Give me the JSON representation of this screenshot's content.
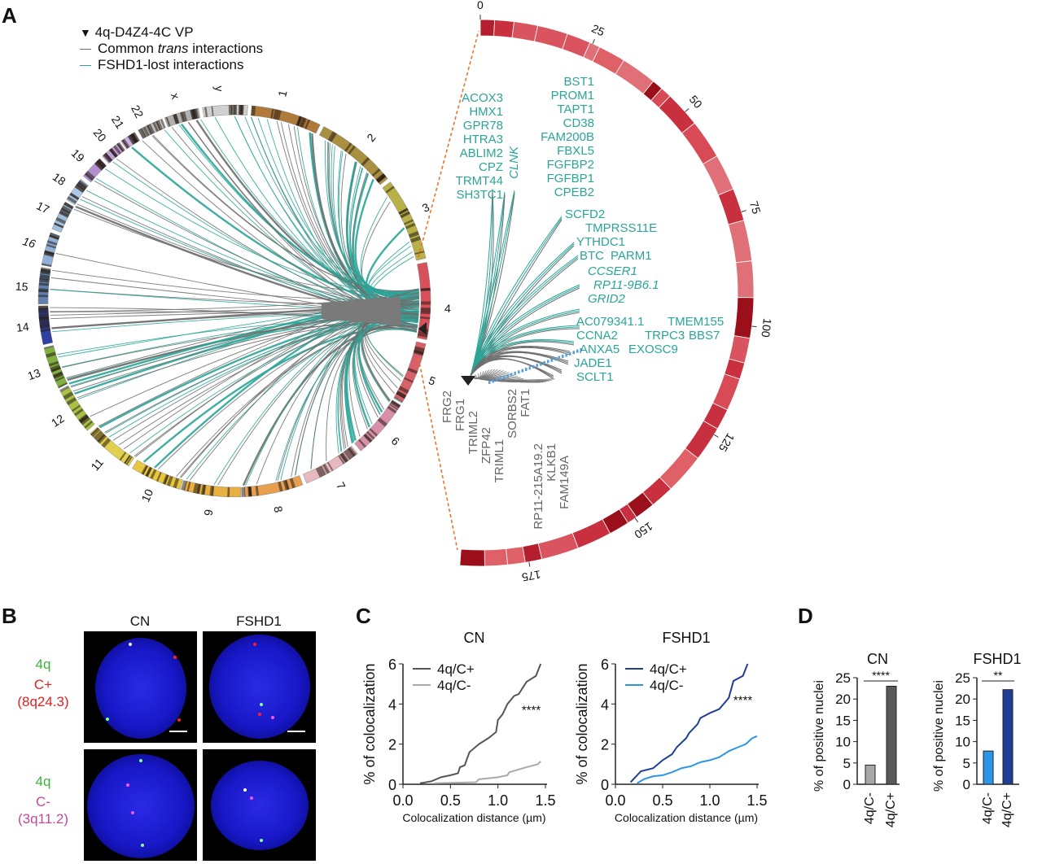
{
  "panels": {
    "A": "A",
    "B": "B",
    "C": "C",
    "D": "D"
  },
  "legend": {
    "vp": "4q-D4Z4-4C VP",
    "common_pre": "Common ",
    "common_italic": "trans",
    "common_post": " interactions",
    "lost": "FSHD1-lost interactions"
  },
  "colors": {
    "common": "#6e6e6e",
    "lost": "#2aa597",
    "vp": "#222222",
    "dash": "#e8742c"
  },
  "chromosomes": [
    "1",
    "2",
    "3",
    "4",
    "5",
    "6",
    "7",
    "8",
    "9",
    "10",
    "11",
    "12",
    "13",
    "14",
    "15",
    "16",
    "17",
    "18",
    "19",
    "20",
    "21",
    "22",
    "x",
    "y"
  ],
  "chr4_ticks": [
    "0",
    "25",
    "50",
    "75",
    "100",
    "125",
    "150",
    "175"
  ],
  "genes": {
    "left_block": [
      "ACOX3",
      "HMX1",
      "GPR78",
      "HTRA3",
      "ABLIM2",
      "CPZ",
      "TRMT44",
      "SH3TC1"
    ],
    "clnk": "CLNK",
    "right_block": [
      "BST1",
      "PROM1",
      "TAPT1",
      "CD38",
      "FAM200B",
      "FBXL5",
      "FGFBP2",
      "FGFBP1",
      "CPEB2"
    ],
    "mid": [
      "SCFD2",
      "TMPRSS11E",
      "YTHDC1",
      "BTC",
      "PARM1"
    ],
    "italic": [
      "CCSER1",
      "RP11-9B6.1",
      "GRID2"
    ],
    "cluster": [
      "TMEM155",
      "TRPC3",
      "BBS7",
      "EXOSC9",
      "ANXA5",
      "CCNA2",
      "AC079341.1",
      "JADE1",
      "SCLT1"
    ],
    "grey": [
      "FRG2",
      "FRG1",
      "TRIML2",
      "ZFP42",
      "TRIML1",
      "SORBS2",
      "FAT1",
      "RP11-215A19.2",
      "KLKB1",
      "FAM149A"
    ]
  },
  "panel_b": {
    "col_headers": [
      "CN",
      "FSHD1"
    ],
    "row1": {
      "probe": "4q",
      "target": "C+",
      "locus": "(8q24.3)"
    },
    "row2": {
      "probe": "4q",
      "target": "C-",
      "locus": "(3q11.2)"
    }
  },
  "chart_data": [
    {
      "id": "C-CN",
      "type": "line",
      "title": "CN",
      "xlabel": "Colocalization distance (µm)",
      "ylabel": "% of colocalization",
      "xlim": [
        0,
        1.5
      ],
      "ylim": [
        0,
        6
      ],
      "xticks": [
        "0.0",
        "0.5",
        "1.0",
        "1.5"
      ],
      "yticks": [
        "0",
        "2",
        "4",
        "6"
      ],
      "legend": "top-left",
      "annotation": "****",
      "series": [
        {
          "name": "4q/C+",
          "color": "#555555",
          "points": [
            [
              0.18,
              0.05
            ],
            [
              0.3,
              0.15
            ],
            [
              0.4,
              0.35
            ],
            [
              0.5,
              0.45
            ],
            [
              0.58,
              0.55
            ],
            [
              0.6,
              0.85
            ],
            [
              0.65,
              0.95
            ],
            [
              0.7,
              1.6
            ],
            [
              0.8,
              2.0
            ],
            [
              0.9,
              2.3
            ],
            [
              0.98,
              2.6
            ],
            [
              1.0,
              3.2
            ],
            [
              1.05,
              3.5
            ],
            [
              1.1,
              4.0
            ],
            [
              1.17,
              4.4
            ],
            [
              1.22,
              4.5
            ],
            [
              1.3,
              5.1
            ],
            [
              1.4,
              5.4
            ],
            [
              1.45,
              6.0
            ]
          ]
        },
        {
          "name": "4q/C-",
          "color": "#aaaaaa",
          "points": [
            [
              0.33,
              0.05
            ],
            [
              0.5,
              0.07
            ],
            [
              0.77,
              0.1
            ],
            [
              0.8,
              0.25
            ],
            [
              1.0,
              0.35
            ],
            [
              1.1,
              0.45
            ],
            [
              1.12,
              0.6
            ],
            [
              1.3,
              0.85
            ],
            [
              1.42,
              1.0
            ],
            [
              1.45,
              1.15
            ]
          ]
        }
      ]
    },
    {
      "id": "C-FSHD1",
      "type": "line",
      "title": "FSHD1",
      "xlabel": "Colocalization distance (µm)",
      "ylabel": "% of colocalization",
      "xlim": [
        0,
        1.5
      ],
      "ylim": [
        0,
        6
      ],
      "xticks": [
        "0.0",
        "0.5",
        "1.0",
        "1.5"
      ],
      "yticks": [
        "0",
        "2",
        "4",
        "6"
      ],
      "legend": "top-left",
      "annotation": "****",
      "series": [
        {
          "name": "4q/C+",
          "color": "#1f3f94",
          "points": [
            [
              0.16,
              0.1
            ],
            [
              0.2,
              0.3
            ],
            [
              0.27,
              0.65
            ],
            [
              0.4,
              0.8
            ],
            [
              0.5,
              1.2
            ],
            [
              0.6,
              1.5
            ],
            [
              0.65,
              1.85
            ],
            [
              0.75,
              2.3
            ],
            [
              0.78,
              2.55
            ],
            [
              0.87,
              3.0
            ],
            [
              0.9,
              3.3
            ],
            [
              1.0,
              3.55
            ],
            [
              1.1,
              3.75
            ],
            [
              1.2,
              4.3
            ],
            [
              1.25,
              5.15
            ],
            [
              1.35,
              5.4
            ],
            [
              1.4,
              6.0
            ]
          ]
        },
        {
          "name": "4q/C-",
          "color": "#2b96e8",
          "points": [
            [
              0.23,
              0.05
            ],
            [
              0.3,
              0.25
            ],
            [
              0.4,
              0.4
            ],
            [
              0.5,
              0.45
            ],
            [
              0.6,
              0.6
            ],
            [
              0.7,
              0.8
            ],
            [
              0.8,
              0.9
            ],
            [
              0.9,
              1.1
            ],
            [
              1.0,
              1.2
            ],
            [
              1.1,
              1.35
            ],
            [
              1.2,
              1.65
            ],
            [
              1.3,
              1.85
            ],
            [
              1.38,
              2.0
            ],
            [
              1.45,
              2.3
            ],
            [
              1.5,
              2.4
            ]
          ]
        }
      ]
    },
    {
      "id": "D-CN",
      "type": "bar",
      "title": "CN",
      "ylabel": "% of positive nuclei",
      "ylim": [
        0,
        25
      ],
      "yticks": [
        "0",
        "5",
        "10",
        "15",
        "20",
        "25"
      ],
      "categories": [
        "4q/C-",
        "4q/C+"
      ],
      "values": [
        4.5,
        23
      ],
      "colors": [
        "#a8a8a8",
        "#5a5a5a"
      ],
      "significance": "****"
    },
    {
      "id": "D-FSHD1",
      "type": "bar",
      "title": "FSHD1",
      "ylabel": "% of positive nuclei",
      "ylim": [
        0,
        25
      ],
      "yticks": [
        "0",
        "5",
        "10",
        "15",
        "20",
        "25"
      ],
      "categories": [
        "4q/C-",
        "4q/C+"
      ],
      "values": [
        7.8,
        22.2
      ],
      "colors": [
        "#2b96e8",
        "#1f3f94"
      ],
      "significance": "**"
    }
  ]
}
